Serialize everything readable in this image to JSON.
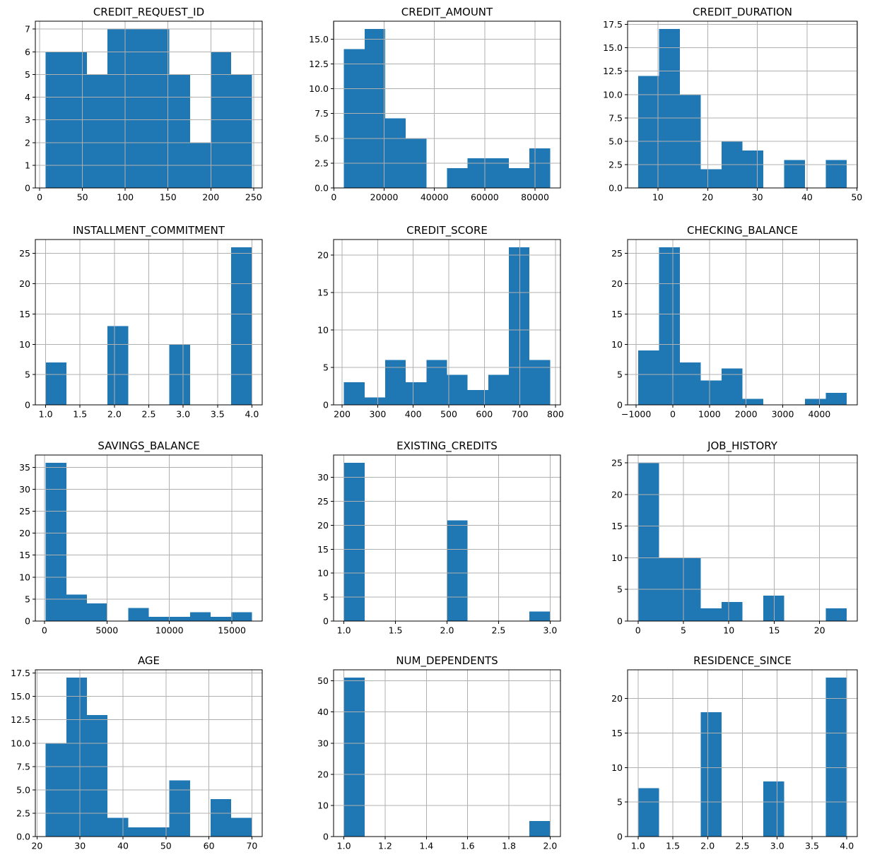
{
  "figure": {
    "background": "#ffffff",
    "rows": 4,
    "columns": 3
  },
  "style": {
    "bar_color": "#1f77b4",
    "grid_color": "#b0b0b0",
    "spine_color": "#000000",
    "text_color": "#000000"
  },
  "chart_data": [
    {
      "type": "bar",
      "title": "CREDIT_REQUEST_ID",
      "bin_edges": [
        7,
        31.1,
        55.2,
        79.3,
        103.4,
        127.5,
        151.6,
        175.7,
        199.8,
        223.9,
        248
      ],
      "counts": [
        6,
        6,
        5,
        7,
        7,
        7,
        5,
        2,
        6,
        5
      ],
      "xlim": [
        -5.05,
        260.05
      ],
      "ylim": [
        0,
        7.35
      ],
      "xticks": [
        0,
        50,
        100,
        150,
        200,
        250
      ],
      "xtick_labels": [
        "0",
        "50",
        "100",
        "150",
        "200",
        "250"
      ],
      "yticks": [
        0,
        1,
        2,
        3,
        4,
        5,
        6,
        7
      ],
      "ytick_labels": [
        "0",
        "1",
        "2",
        "3",
        "4",
        "5",
        "6",
        "7"
      ],
      "grid": true
    },
    {
      "type": "bar",
      "title": "CREDIT_AMOUNT",
      "bin_edges": [
        4000,
        12200,
        20400,
        28600,
        36800,
        45000,
        53200,
        61400,
        69600,
        77800,
        86000
      ],
      "counts": [
        14,
        16,
        7,
        5,
        0,
        2,
        3,
        3,
        2,
        4
      ],
      "xlim": [
        -100,
        90100
      ],
      "ylim": [
        0,
        16.8
      ],
      "xticks": [
        0,
        20000,
        40000,
        60000,
        80000
      ],
      "xtick_labels": [
        "0",
        "20000",
        "40000",
        "60000",
        "80000"
      ],
      "yticks": [
        0,
        2.5,
        5,
        7.5,
        10,
        12.5,
        15
      ],
      "ytick_labels": [
        "0.0",
        "2.5",
        "5.0",
        "7.5",
        "10.0",
        "12.5",
        "15.0"
      ],
      "grid": true
    },
    {
      "type": "bar",
      "title": "CREDIT_DURATION",
      "bin_edges": [
        6,
        10.2,
        14.4,
        18.6,
        22.8,
        27,
        31.2,
        35.4,
        39.6,
        43.8,
        48
      ],
      "counts": [
        12,
        17,
        10,
        2,
        5,
        4,
        0,
        3,
        0,
        3
      ],
      "xlim": [
        3.9,
        50.1
      ],
      "ylim": [
        0,
        17.85
      ],
      "xticks": [
        10,
        20,
        30,
        40,
        50
      ],
      "xtick_labels": [
        "10",
        "20",
        "30",
        "40",
        "50"
      ],
      "yticks": [
        0,
        2.5,
        5,
        7.5,
        10,
        12.5,
        15,
        17.5
      ],
      "ytick_labels": [
        "0.0",
        "2.5",
        "5.0",
        "7.5",
        "10.0",
        "12.5",
        "15.0",
        "17.5"
      ],
      "grid": true
    },
    {
      "type": "bar",
      "title": "INSTALLMENT_COMMITMENT",
      "bin_edges": [
        1,
        1.3,
        1.6,
        1.9,
        2.2,
        2.5,
        2.8,
        3.1,
        3.4,
        3.7,
        4
      ],
      "counts": [
        7,
        0,
        0,
        13,
        0,
        0,
        10,
        0,
        0,
        26
      ],
      "xlim": [
        0.85,
        4.15
      ],
      "ylim": [
        0,
        27.3
      ],
      "xticks": [
        1,
        1.5,
        2,
        2.5,
        3,
        3.5,
        4
      ],
      "xtick_labels": [
        "1.0",
        "1.5",
        "2.0",
        "2.5",
        "3.0",
        "3.5",
        "4.0"
      ],
      "yticks": [
        0,
        5,
        10,
        15,
        20,
        25
      ],
      "ytick_labels": [
        "0",
        "5",
        "10",
        "15",
        "20",
        "25"
      ],
      "grid": true
    },
    {
      "type": "bar",
      "title": "CREDIT_SCORE",
      "bin_edges": [
        205,
        263,
        321,
        379,
        437,
        495,
        553,
        611,
        669,
        727,
        785
      ],
      "counts": [
        3,
        1,
        6,
        3,
        6,
        4,
        2,
        4,
        21,
        6
      ],
      "xlim": [
        176,
        814
      ],
      "ylim": [
        0,
        22.05
      ],
      "xticks": [
        200,
        300,
        400,
        500,
        600,
        700,
        800
      ],
      "xtick_labels": [
        "200",
        "300",
        "400",
        "500",
        "600",
        "700",
        "800"
      ],
      "yticks": [
        0,
        5,
        10,
        15,
        20
      ],
      "ytick_labels": [
        "0",
        "5",
        "10",
        "15",
        "20"
      ],
      "grid": true
    },
    {
      "type": "bar",
      "title": "CHECKING_BALANCE",
      "bin_edges": [
        -950,
        -380,
        190,
        760,
        1330,
        1900,
        2470,
        3040,
        3610,
        4180,
        4750
      ],
      "counts": [
        9,
        26,
        7,
        4,
        6,
        1,
        0,
        0,
        1,
        2
      ],
      "xlim": [
        -1235,
        5035
      ],
      "ylim": [
        0,
        27.3
      ],
      "xticks": [
        -1000,
        0,
        1000,
        2000,
        3000,
        4000
      ],
      "xtick_labels": [
        "−1000",
        "0",
        "1000",
        "2000",
        "3000",
        "4000"
      ],
      "yticks": [
        0,
        5,
        10,
        15,
        20,
        25
      ],
      "ytick_labels": [
        "0",
        "5",
        "10",
        "15",
        "20",
        "25"
      ],
      "grid": true
    },
    {
      "type": "bar",
      "title": "SAVINGS_BALANCE",
      "bin_edges": [
        100,
        1750,
        3400,
        5050,
        6700,
        8350,
        10000,
        11650,
        13300,
        14950,
        16600
      ],
      "counts": [
        36,
        6,
        4,
        0,
        3,
        1,
        1,
        2,
        1,
        2
      ],
      "xlim": [
        -725,
        17425
      ],
      "ylim": [
        0,
        37.8
      ],
      "xticks": [
        0,
        5000,
        10000,
        15000
      ],
      "xtick_labels": [
        "0",
        "5000",
        "10000",
        "15000"
      ],
      "yticks": [
        0,
        5,
        10,
        15,
        20,
        25,
        30,
        35
      ],
      "ytick_labels": [
        "0",
        "5",
        "10",
        "15",
        "20",
        "25",
        "30",
        "35"
      ],
      "grid": true
    },
    {
      "type": "bar",
      "title": "EXISTING_CREDITS",
      "bin_edges": [
        1,
        1.2,
        1.4,
        1.6,
        1.8,
        2,
        2.2,
        2.4,
        2.6,
        2.8,
        3
      ],
      "counts": [
        33,
        0,
        0,
        0,
        0,
        21,
        0,
        0,
        0,
        2
      ],
      "xlim": [
        0.9,
        3.1
      ],
      "ylim": [
        0,
        34.65
      ],
      "xticks": [
        1,
        1.5,
        2,
        2.5,
        3
      ],
      "xtick_labels": [
        "1.0",
        "1.5",
        "2.0",
        "2.5",
        "3.0"
      ],
      "yticks": [
        0,
        5,
        10,
        15,
        20,
        25,
        30
      ],
      "ytick_labels": [
        "0",
        "5",
        "10",
        "15",
        "20",
        "25",
        "30"
      ],
      "grid": true
    },
    {
      "type": "bar",
      "title": "JOB_HISTORY",
      "bin_edges": [
        0,
        2.3,
        4.6,
        6.9,
        9.2,
        11.5,
        13.8,
        16.1,
        18.4,
        20.7,
        23
      ],
      "counts": [
        25,
        10,
        10,
        2,
        3,
        0,
        4,
        0,
        0,
        2
      ],
      "xlim": [
        -1.15,
        24.15
      ],
      "ylim": [
        0,
        26.25
      ],
      "xticks": [
        0,
        5,
        10,
        15,
        20
      ],
      "xtick_labels": [
        "0",
        "5",
        "10",
        "15",
        "20"
      ],
      "yticks": [
        0,
        5,
        10,
        15,
        20,
        25
      ],
      "ytick_labels": [
        "0",
        "5",
        "10",
        "15",
        "20",
        "25"
      ],
      "grid": true
    },
    {
      "type": "bar",
      "title": "AGE",
      "bin_edges": [
        22,
        26.8,
        31.6,
        36.4,
        41.2,
        46,
        50.8,
        55.6,
        60.4,
        65.2,
        70
      ],
      "counts": [
        10,
        17,
        13,
        2,
        1,
        1,
        6,
        0,
        4,
        2
      ],
      "xlim": [
        19.6,
        72.4
      ],
      "ylim": [
        0,
        17.85
      ],
      "xticks": [
        20,
        30,
        40,
        50,
        60,
        70
      ],
      "xtick_labels": [
        "20",
        "30",
        "40",
        "50",
        "60",
        "70"
      ],
      "yticks": [
        0,
        2.5,
        5,
        7.5,
        10,
        12.5,
        15,
        17.5
      ],
      "ytick_labels": [
        "0.0",
        "2.5",
        "5.0",
        "7.5",
        "10.0",
        "12.5",
        "15.0",
        "17.5"
      ],
      "grid": true
    },
    {
      "type": "bar",
      "title": "NUM_DEPENDENTS",
      "bin_edges": [
        1,
        1.1,
        1.2,
        1.3,
        1.4,
        1.5,
        1.6,
        1.7,
        1.8,
        1.9,
        2
      ],
      "counts": [
        51,
        0,
        0,
        0,
        0,
        0,
        0,
        0,
        0,
        5
      ],
      "xlim": [
        0.95,
        2.05
      ],
      "ylim": [
        0,
        53.55
      ],
      "xticks": [
        1,
        1.2,
        1.4,
        1.6,
        1.8,
        2
      ],
      "xtick_labels": [
        "1.0",
        "1.2",
        "1.4",
        "1.6",
        "1.8",
        "2.0"
      ],
      "yticks": [
        0,
        10,
        20,
        30,
        40,
        50
      ],
      "ytick_labels": [
        "0",
        "10",
        "20",
        "30",
        "40",
        "50"
      ],
      "grid": true
    },
    {
      "type": "bar",
      "title": "RESIDENCE_SINCE",
      "bin_edges": [
        1,
        1.3,
        1.6,
        1.9,
        2.2,
        2.5,
        2.8,
        3.1,
        3.4,
        3.7,
        4
      ],
      "counts": [
        7,
        0,
        0,
        18,
        0,
        0,
        8,
        0,
        0,
        23
      ],
      "xlim": [
        0.85,
        4.15
      ],
      "ylim": [
        0,
        24.15
      ],
      "xticks": [
        1,
        1.5,
        2,
        2.5,
        3,
        3.5,
        4
      ],
      "xtick_labels": [
        "1.0",
        "1.5",
        "2.0",
        "2.5",
        "3.0",
        "3.5",
        "4.0"
      ],
      "yticks": [
        0,
        5,
        10,
        15,
        20
      ],
      "ytick_labels": [
        "0",
        "5",
        "10",
        "15",
        "20"
      ],
      "grid": true
    }
  ]
}
